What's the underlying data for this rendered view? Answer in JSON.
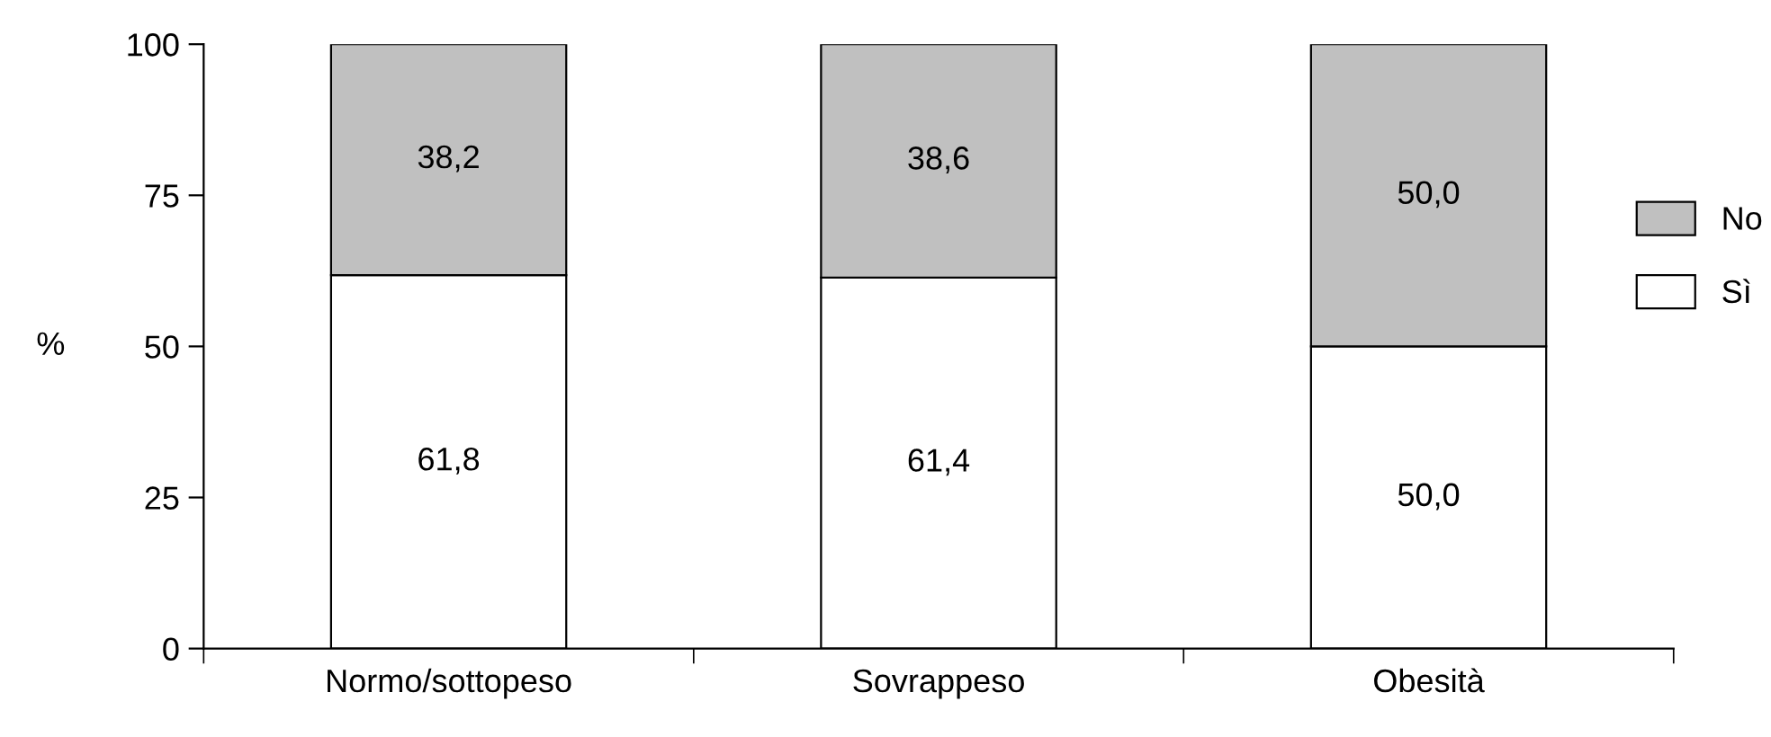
{
  "chart_data": {
    "type": "bar",
    "stacked": true,
    "ylabel": "%",
    "categories": [
      "Normo/sottopeso",
      "Sovrappeso",
      "Obesità"
    ],
    "series": [
      {
        "name": "Sì",
        "color": "#ffffff",
        "values": [
          61.8,
          61.4,
          50.0
        ],
        "value_labels": [
          "61,8",
          "61,4",
          "50,0"
        ]
      },
      {
        "name": "No",
        "color": "#c0c0c0",
        "values": [
          38.2,
          38.6,
          50.0
        ],
        "value_labels": [
          "38,2",
          "38,6",
          "50,0"
        ]
      }
    ],
    "ylim": [
      0,
      100
    ],
    "yticks": [
      0,
      25,
      50,
      75,
      100
    ],
    "grid": false,
    "legend": "right"
  }
}
